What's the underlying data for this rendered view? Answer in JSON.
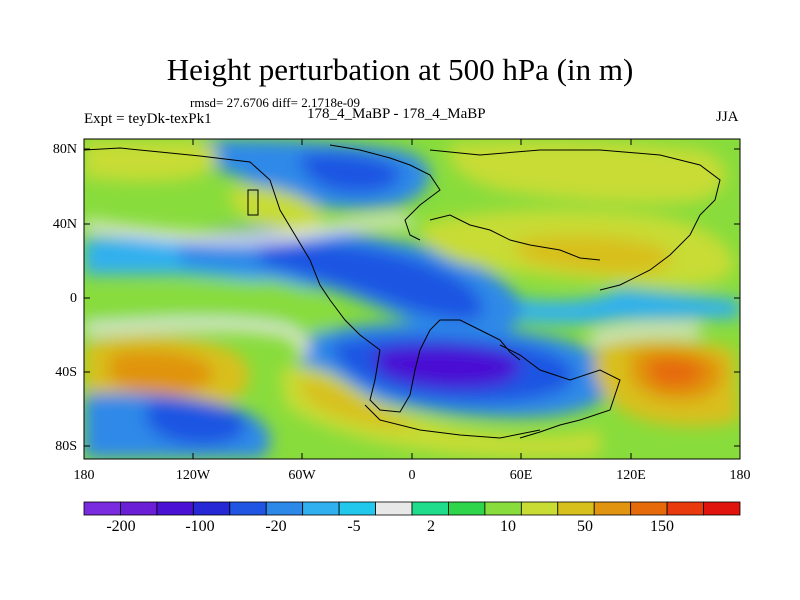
{
  "figure": {
    "title": "Height perturbation at 500 hPa (in m)",
    "stats": "rmsd= 27.6706 diff= 2.1718e-09",
    "left_label": "Expt = teyDk-texPk1",
    "center_label": "178_4_MaBP - 178_4_MaBP",
    "right_label": "JJA"
  },
  "map": {
    "lat_ticks": [
      "80N",
      "40N",
      "0",
      "40S",
      "80S"
    ],
    "lon_ticks": [
      "180",
      "120W",
      "60W",
      "0",
      "60E",
      "120E",
      "180"
    ],
    "regions": [
      {
        "name": "arctic-high",
        "lon": -130,
        "lat": 82,
        "value": 20
      },
      {
        "name": "north-atlantic-low",
        "lon": -20,
        "lat": 72,
        "value": -60
      },
      {
        "name": "north-america-low",
        "lon": -70,
        "lat": 20,
        "value": -40
      },
      {
        "name": "east-pacific-high",
        "lon": -100,
        "lat": 45,
        "value": 15
      },
      {
        "name": "asia-high",
        "lon": 95,
        "lat": 40,
        "value": 40
      },
      {
        "name": "arctic-asia-high",
        "lon": 90,
        "lat": 80,
        "value": 15
      },
      {
        "name": "southern-low",
        "lon": 10,
        "lat": -38,
        "value": -120
      },
      {
        "name": "south-pacific-high",
        "lon": -140,
        "lat": -45,
        "value": 60
      },
      {
        "name": "south-indian-high",
        "lon": 145,
        "lat": -42,
        "value": 120
      },
      {
        "name": "south-atlantic-high",
        "lon": -50,
        "lat": -55,
        "value": 40
      },
      {
        "name": "antarctic-low",
        "lon": -90,
        "lat": -62,
        "value": -30
      }
    ]
  },
  "colorbar": {
    "levels": [
      "-200",
      "-100",
      "-20",
      "-5",
      "2",
      "10",
      "50",
      "150"
    ],
    "colors": [
      "#7a2be0",
      "#6a1fd6",
      "#4a10d4",
      "#2628d6",
      "#1f55e2",
      "#2d89e8",
      "#30b0ef",
      "#22c8ec",
      "#e8e8e8",
      "#1fdc8c",
      "#2ed44a",
      "#88dc3c",
      "#c8dc34",
      "#d8c01c",
      "#e09410",
      "#e66a0a",
      "#e83a0c",
      "#e0140c"
    ]
  }
}
